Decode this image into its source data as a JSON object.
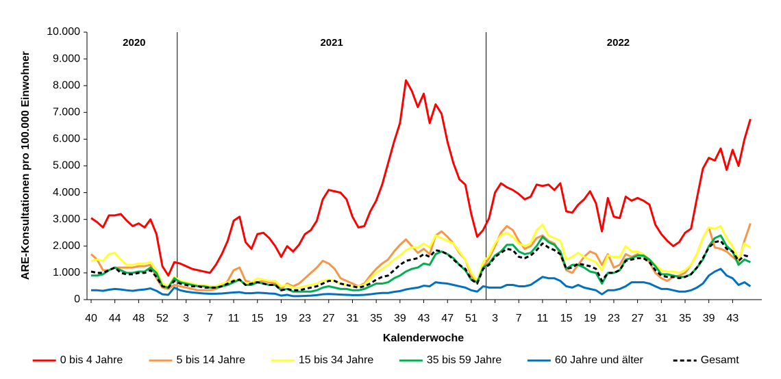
{
  "chart_data": {
    "type": "line",
    "y_label": "ARE-Konsultationen pro 100.000 Einwohner",
    "x_label": "Kalenderwoche",
    "annotations": [
      "2020",
      "2021",
      "2022"
    ],
    "categories": [
      "40",
      null,
      null,
      null,
      "44",
      null,
      null,
      null,
      "48",
      null,
      null,
      null,
      "52",
      null,
      null,
      null,
      "3",
      null,
      null,
      null,
      "7",
      null,
      null,
      null,
      "11",
      null,
      null,
      null,
      "15",
      null,
      null,
      null,
      "19",
      null,
      null,
      null,
      "23",
      null,
      null,
      null,
      "27",
      null,
      null,
      null,
      "31",
      null,
      null,
      null,
      "35",
      null,
      null,
      null,
      "39",
      null,
      null,
      null,
      "43",
      null,
      null,
      null,
      "47",
      null,
      null,
      null,
      "51",
      null,
      null,
      null,
      "3",
      null,
      null,
      null,
      "7",
      null,
      null,
      null,
      "11",
      null,
      null,
      null,
      "15",
      null,
      null,
      null,
      "19",
      null,
      null,
      null,
      "23",
      null,
      null,
      null,
      "27",
      null,
      null,
      null,
      "31",
      null,
      null,
      null,
      "35",
      null,
      null,
      null,
      "39",
      null,
      null,
      null,
      "43",
      null,
      null,
      null
    ],
    "ylim": [
      0,
      10000
    ],
    "yticks": [
      0,
      {
        "value": 1000,
        "label": "1.000"
      },
      {
        "value": 2000,
        "label": "2.000"
      },
      {
        "value": 3000,
        "label": "3.000"
      },
      {
        "value": 4000,
        "label": "4.000"
      },
      {
        "value": 5000,
        "label": "5.000"
      },
      {
        "value": 6000,
        "label": "6.000"
      },
      {
        "value": 7000,
        "label": "7.000"
      },
      {
        "value": 8000,
        "label": "8.000"
      },
      {
        "value": 9000,
        "label": "9.000"
      },
      {
        "value": 10000,
        "label": "10.000"
      }
    ],
    "grid": false,
    "legend": "bottom",
    "series": [
      {
        "name": "0 bis 4 Jahre",
        "color": "#ff0000",
        "style": "solid",
        "values": [
          3050,
          2900,
          2700,
          3150,
          3150,
          3200,
          2950,
          2750,
          2850,
          2700,
          3000,
          2450,
          1250,
          900,
          1400,
          1350,
          1250,
          1150,
          1100,
          1050,
          1000,
          1300,
          1700,
          2200,
          2950,
          3100,
          2150,
          1900,
          2450,
          2500,
          2300,
          2000,
          1600,
          2000,
          1800,
          2050,
          2450,
          2600,
          2950,
          3750,
          4100,
          4050,
          4000,
          3750,
          3100,
          2700,
          2750,
          3300,
          3700,
          4300,
          5100,
          5900,
          6600,
          8200,
          7800,
          7200,
          7700,
          6600,
          7300,
          6950,
          5900,
          5100,
          4500,
          4300,
          3200,
          2350,
          2600,
          3050,
          4000,
          4350,
          4200,
          4100,
          3950,
          3750,
          3850,
          4300,
          4250,
          4300,
          4100,
          4350,
          3300,
          3250,
          3550,
          3750,
          4050,
          3600,
          2550,
          3800,
          3100,
          3050,
          3850,
          3700,
          3800,
          3700,
          3550,
          2800,
          2450,
          2200,
          2000,
          2150,
          2500,
          2650,
          3800,
          4900,
          5300,
          5200,
          5650,
          4850,
          5600,
          5000,
          6000,
          6750
        ]
      },
      {
        "name": "5 bis 14 Jahre",
        "color": "#f79646",
        "style": "solid",
        "values": [
          1700,
          1500,
          1100,
          1100,
          1200,
          1200,
          1200,
          1200,
          1250,
          1250,
          1300,
          800,
          450,
          400,
          550,
          500,
          450,
          400,
          350,
          350,
          350,
          400,
          500,
          700,
          1100,
          1200,
          700,
          650,
          650,
          700,
          650,
          600,
          400,
          600,
          500,
          600,
          800,
          1000,
          1200,
          1450,
          1350,
          1150,
          800,
          700,
          600,
          500,
          600,
          900,
          1150,
          1350,
          1500,
          1800,
          2050,
          2250,
          2000,
          1750,
          1900,
          1700,
          2400,
          2550,
          2350,
          2100,
          1750,
          1500,
          900,
          600,
          1200,
          1550,
          2000,
          2500,
          2750,
          2600,
          2200,
          1900,
          2000,
          2300,
          2400,
          2200,
          2100,
          1700,
          1100,
          1000,
          1300,
          1600,
          1800,
          1700,
          1300,
          1700,
          1200,
          1300,
          1700,
          1600,
          1700,
          1600,
          1400,
          1000,
          800,
          700,
          850,
          900,
          1000,
          1300,
          1700,
          2300,
          2700,
          1950,
          1900,
          1800,
          1600,
          1400,
          2200,
          2850
        ]
      },
      {
        "name": "15 bis 34 Jahre",
        "color": "#ffff33",
        "style": "solid",
        "values": [
          1450,
          1500,
          1450,
          1700,
          1750,
          1500,
          1300,
          1300,
          1350,
          1350,
          1400,
          1100,
          600,
          500,
          850,
          700,
          650,
          600,
          550,
          550,
          500,
          500,
          600,
          650,
          750,
          700,
          600,
          650,
          800,
          750,
          700,
          700,
          500,
          550,
          450,
          450,
          500,
          550,
          600,
          700,
          750,
          700,
          600,
          550,
          500,
          500,
          550,
          800,
          1000,
          1150,
          1300,
          1500,
          1650,
          1850,
          1950,
          1950,
          2100,
          1950,
          2400,
          2300,
          2200,
          2100,
          1800,
          1500,
          1000,
          700,
          1400,
          1650,
          2100,
          2400,
          2500,
          2350,
          2100,
          2000,
          2100,
          2600,
          2800,
          2400,
          2300,
          2200,
          1500,
          1600,
          1750,
          1600,
          1500,
          1400,
          1100,
          1650,
          1600,
          1600,
          2000,
          1800,
          1800,
          1700,
          1500,
          1300,
          1100,
          1050,
          1050,
          1000,
          1100,
          1300,
          1700,
          2300,
          2700,
          2650,
          2750,
          2300,
          2000,
          1500,
          2100,
          1950
        ]
      },
      {
        "name": "35 bis 59 Jahre",
        "color": "#00b050",
        "style": "solid",
        "values": [
          900,
          900,
          950,
          1100,
          1200,
          1100,
          1000,
          1000,
          1050,
          1050,
          1200,
          1000,
          500,
          450,
          800,
          650,
          600,
          550,
          500,
          500,
          450,
          450,
          500,
          550,
          650,
          750,
          550,
          550,
          650,
          600,
          550,
          550,
          350,
          400,
          300,
          300,
          300,
          300,
          350,
          450,
          500,
          450,
          400,
          400,
          350,
          350,
          400,
          500,
          600,
          600,
          650,
          800,
          900,
          1050,
          1150,
          1200,
          1350,
          1300,
          1700,
          1800,
          1700,
          1550,
          1300,
          1100,
          750,
          650,
          1200,
          1350,
          1650,
          1800,
          2050,
          2050,
          1800,
          1700,
          1750,
          2000,
          2350,
          2150,
          2050,
          1800,
          1150,
          1300,
          1300,
          1200,
          1050,
          1000,
          600,
          1000,
          1000,
          1100,
          1500,
          1550,
          1650,
          1650,
          1500,
          1250,
          950,
          950,
          900,
          850,
          850,
          950,
          1200,
          1500,
          2000,
          2300,
          2400,
          2000,
          1800,
          1300,
          1500,
          1400
        ]
      },
      {
        "name": "60 Jahre und älter",
        "color": "#0070c0",
        "style": "solid",
        "values": [
          350,
          350,
          330,
          370,
          400,
          380,
          350,
          330,
          360,
          380,
          420,
          330,
          200,
          180,
          450,
          350,
          300,
          270,
          250,
          230,
          220,
          220,
          230,
          250,
          270,
          280,
          240,
          240,
          260,
          250,
          230,
          220,
          150,
          180,
          130,
          130,
          140,
          150,
          170,
          200,
          210,
          200,
          190,
          180,
          170,
          170,
          180,
          200,
          230,
          250,
          250,
          290,
          320,
          380,
          420,
          450,
          520,
          500,
          650,
          620,
          600,
          550,
          500,
          450,
          350,
          300,
          500,
          450,
          450,
          450,
          550,
          550,
          500,
          500,
          550,
          700,
          850,
          800,
          800,
          700,
          500,
          450,
          550,
          450,
          400,
          350,
          200,
          350,
          350,
          400,
          500,
          650,
          650,
          650,
          600,
          500,
          400,
          400,
          350,
          300,
          300,
          350,
          450,
          600,
          900,
          1050,
          1150,
          900,
          800,
          550,
          650,
          500
        ]
      },
      {
        "name": "Gesamt",
        "color": "#000000",
        "style": "dashed",
        "values": [
          1050,
          1000,
          1000,
          1100,
          1200,
          1000,
          950,
          950,
          1000,
          1000,
          1100,
          850,
          500,
          450,
          700,
          600,
          550,
          500,
          500,
          450,
          450,
          450,
          500,
          600,
          700,
          750,
          550,
          600,
          650,
          600,
          550,
          550,
          350,
          400,
          350,
          350,
          400,
          450,
          500,
          600,
          700,
          700,
          600,
          550,
          500,
          450,
          500,
          600,
          750,
          850,
          900,
          1100,
          1300,
          1450,
          1500,
          1550,
          1700,
          1600,
          1850,
          1800,
          1700,
          1500,
          1300,
          1150,
          750,
          600,
          1150,
          1300,
          1600,
          1750,
          1900,
          1850,
          1600,
          1550,
          1650,
          1850,
          2100,
          1950,
          1850,
          1700,
          1150,
          1200,
          1350,
          1300,
          1250,
          1150,
          700,
          1000,
          1000,
          1100,
          1450,
          1500,
          1550,
          1550,
          1400,
          1100,
          900,
          850,
          850,
          800,
          850,
          950,
          1200,
          1550,
          1950,
          2150,
          2200,
          1900,
          1800,
          1450,
          1650,
          1600
        ]
      }
    ]
  }
}
